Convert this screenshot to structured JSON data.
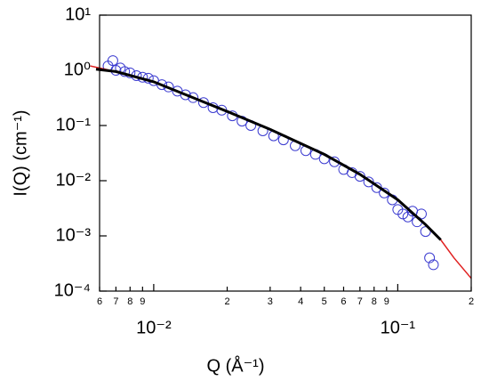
{
  "chart_data": {
    "type": "scatter",
    "xlabel": "Q (Å⁻¹)",
    "ylabel": "I(Q) (cm⁻¹)",
    "xscale": "log",
    "yscale": "log",
    "xlim": [
      0.006,
      0.2
    ],
    "ylim": [
      0.0001,
      10
    ],
    "xticks": [
      {
        "value": 0.006,
        "label": "6"
      },
      {
        "value": 0.007,
        "label": "7"
      },
      {
        "value": 0.008,
        "label": "8"
      },
      {
        "value": 0.009,
        "label": "9"
      },
      {
        "value": 0.01,
        "label": "10⁻²"
      },
      {
        "value": 0.02,
        "label": "2"
      },
      {
        "value": 0.03,
        "label": "3"
      },
      {
        "value": 0.04,
        "label": "4"
      },
      {
        "value": 0.05,
        "label": "5"
      },
      {
        "value": 0.06,
        "label": "6"
      },
      {
        "value": 0.07,
        "label": "7"
      },
      {
        "value": 0.08,
        "label": "8"
      },
      {
        "value": 0.09,
        "label": "9"
      },
      {
        "value": 0.1,
        "label": "10⁻¹"
      },
      {
        "value": 0.2,
        "label": "2"
      }
    ],
    "yticks": [
      {
        "value": 10,
        "label": "10¹"
      },
      {
        "value": 1,
        "label": "10⁰"
      },
      {
        "value": 0.1,
        "label": "10⁻¹"
      },
      {
        "value": 0.01,
        "label": "10⁻²"
      },
      {
        "value": 0.001,
        "label": "10⁻³"
      },
      {
        "value": 0.0001,
        "label": "10⁻⁴"
      }
    ],
    "series": [
      {
        "kind": "markers",
        "color": "#3b3bd0",
        "x": [
          0.0065,
          0.0068,
          0.007,
          0.0073,
          0.0076,
          0.008,
          0.0085,
          0.009,
          0.0095,
          0.01,
          0.0108,
          0.0115,
          0.0125,
          0.0135,
          0.0145,
          0.016,
          0.0175,
          0.019,
          0.021,
          0.023,
          0.025,
          0.028,
          0.031,
          0.034,
          0.038,
          0.042,
          0.046,
          0.05,
          0.055,
          0.06,
          0.065,
          0.07,
          0.076,
          0.082,
          0.088,
          0.095,
          0.1,
          0.105,
          0.11,
          0.115,
          0.12,
          0.125,
          0.13,
          0.135,
          0.14
        ],
        "values": [
          1.2,
          1.5,
          1.0,
          1.1,
          0.95,
          0.9,
          0.8,
          0.75,
          0.72,
          0.65,
          0.55,
          0.5,
          0.42,
          0.36,
          0.32,
          0.26,
          0.21,
          0.19,
          0.15,
          0.12,
          0.1,
          0.08,
          0.065,
          0.055,
          0.043,
          0.035,
          0.03,
          0.025,
          0.022,
          0.016,
          0.014,
          0.012,
          0.0095,
          0.0075,
          0.006,
          0.0045,
          0.003,
          0.0025,
          0.0022,
          0.0028,
          0.0018,
          0.0025,
          0.0012,
          0.0004,
          0.0003
        ]
      },
      {
        "kind": "line",
        "color": "#e02020",
        "x": [
          0.0055,
          0.007,
          0.01,
          0.015,
          0.02,
          0.03,
          0.05,
          0.07,
          0.1,
          0.13,
          0.15,
          0.17,
          0.2
        ],
        "values": [
          1.2,
          0.95,
          0.62,
          0.3,
          0.18,
          0.085,
          0.03,
          0.013,
          0.0045,
          0.0016,
          0.00085,
          0.0004,
          0.00017
        ]
      },
      {
        "kind": "line",
        "color": "#000000",
        "x": [
          0.0058,
          0.007,
          0.01,
          0.015,
          0.02,
          0.03,
          0.05,
          0.07,
          0.1,
          0.13,
          0.15
        ],
        "values": [
          1.05,
          0.95,
          0.62,
          0.3,
          0.18,
          0.085,
          0.03,
          0.013,
          0.0045,
          0.0016,
          0.00085
        ]
      }
    ]
  }
}
